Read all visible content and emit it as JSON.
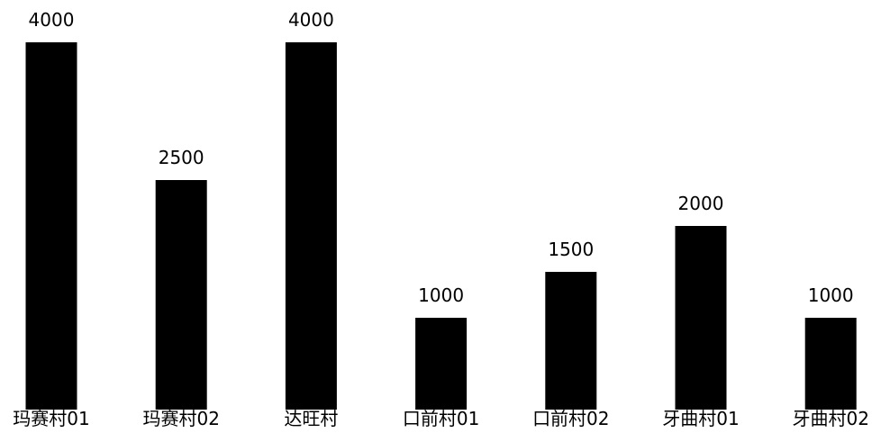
{
  "chart_data": {
    "type": "bar",
    "categories": [
      "玛赛村01",
      "玛赛村02",
      "达旺村",
      "口前村01",
      "口前村02",
      "牙曲村01",
      "牙曲村02"
    ],
    "values": [
      4000,
      2500,
      4000,
      1000,
      1500,
      2000,
      1000
    ],
    "data_labels": [
      "4000",
      "2500",
      "4000",
      "1000",
      "1500",
      "2000",
      "1000"
    ],
    "title": "",
    "xlabel": "",
    "ylabel": "",
    "ylim": [
      0,
      4000
    ],
    "grid": false,
    "legend": "none",
    "bar_color": "#000000"
  }
}
